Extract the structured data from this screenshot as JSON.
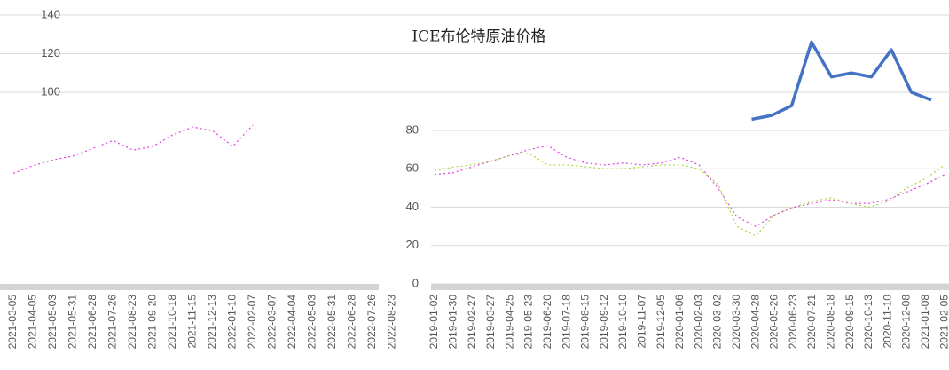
{
  "chart_data": [
    {
      "type": "line",
      "title": "ICE布伦特原油价格",
      "categories": [
        "2021-03-05",
        "2021-04-05",
        "2021-05-03",
        "2021-05-31",
        "2021-06-28",
        "2021-07-26",
        "2021-08-23",
        "2021-09-20",
        "2021-10-18",
        "2021-11-15",
        "2021-12-13",
        "2022-01-10",
        "2022-02-07",
        "2022-03-07",
        "2022-04-04",
        "2022-05-03",
        "2022-05-31",
        "2022-06-28",
        "2022-07-26",
        "2022-08-23",
        null,
        null,
        null,
        null,
        null,
        null,
        null,
        null,
        null,
        null,
        null,
        null,
        null,
        null,
        null,
        null,
        null,
        null,
        null,
        null,
        null,
        null,
        null,
        null,
        null,
        null,
        null
      ],
      "series": [
        {
          "color": "#e040e0",
          "values": [
            58,
            62,
            65,
            67,
            71,
            75,
            70,
            72,
            78,
            82,
            80,
            72,
            83,
            null,
            null,
            null,
            null,
            null,
            null,
            null,
            null,
            null,
            null,
            null,
            null,
            null,
            null,
            null,
            null,
            null,
            null,
            null,
            null,
            null,
            null,
            null,
            null,
            null,
            null,
            null,
            null,
            null,
            null,
            null,
            null,
            null,
            null
          ]
        },
        {
          "color": "#4472c4",
          "values": [
            null,
            null,
            null,
            null,
            null,
            null,
            null,
            null,
            null,
            null,
            null,
            null,
            null,
            null,
            null,
            null,
            null,
            null,
            null,
            null,
            null,
            null,
            null,
            null,
            null,
            null,
            null,
            null,
            null,
            null,
            null,
            null,
            null,
            null,
            null,
            null,
            null,
            86,
            88,
            93,
            126,
            108,
            110,
            108,
            122,
            100,
            96
          ]
        }
      ],
      "ylim": [
        0,
        140
      ],
      "yticks": [
        100,
        120,
        140
      ],
      "grid": true
    },
    {
      "type": "line",
      "categories": [
        "2019-01-02",
        "2019-01-30",
        "2019-02-27",
        "2019-03-27",
        "2019-04-25",
        "2019-05-23",
        "2019-06-20",
        "2019-07-18",
        "2019-08-15",
        "2019-09-12",
        "2019-10-10",
        "2019-11-07",
        "2019-12-05",
        "2020-01-06",
        "2020-02-03",
        "2020-03-02",
        "2020-03-30",
        "2020-04-28",
        "2020-05-26",
        "2020-06-23",
        "2020-07-21",
        "2020-08-18",
        "2020-09-15",
        "2020-10-13",
        "2020-11-10",
        "2020-12-08",
        "2021-01-08",
        "2021-02-05"
      ],
      "series": [
        {
          "color": "#e040e0",
          "values": [
            57,
            58,
            61,
            64,
            67,
            70,
            72,
            66,
            63,
            62,
            63,
            62,
            63,
            66,
            62,
            50,
            35,
            30,
            36,
            40,
            42,
            44,
            42,
            42,
            44,
            48,
            52,
            57
          ]
        },
        {
          "color": "#a8d840",
          "values": [
            59,
            61,
            62,
            64,
            67,
            68,
            62,
            62,
            61,
            60,
            60,
            61,
            62,
            62,
            60,
            52,
            30,
            25,
            36,
            40,
            43,
            45,
            42,
            40,
            43,
            50,
            55,
            62
          ]
        }
      ],
      "ylim": [
        0,
        80
      ],
      "yticks": [
        0,
        20,
        40,
        60,
        80
      ],
      "grid": true
    }
  ]
}
